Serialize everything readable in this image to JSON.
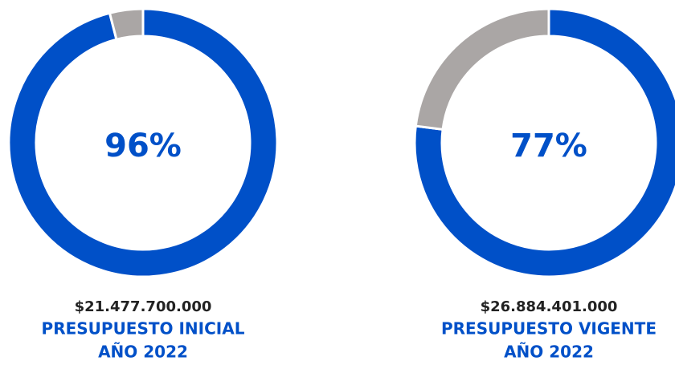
{
  "chart_data": [
    {
      "type": "pie",
      "donut": true,
      "categories": [
        null,
        null
      ],
      "values": [
        96,
        4
      ],
      "value_labels": [
        "96%",
        null
      ],
      "colors": [
        "#0050c8",
        "#aaa6a5"
      ],
      "amount": "$21.477.700.000",
      "title": [
        "PRESUPUESTO INICIAL",
        "AÑO 2022"
      ]
    },
    {
      "type": "pie",
      "donut": true,
      "categories": [
        null,
        null
      ],
      "values": [
        77,
        23
      ],
      "value_labels": [
        "77%",
        null
      ],
      "colors": [
        "#0050c8",
        "#aaa6a5"
      ],
      "amount": "$26.884.401.000",
      "title": [
        "PRESUPUESTO VIGENTE",
        "AÑO 2022"
      ]
    }
  ]
}
